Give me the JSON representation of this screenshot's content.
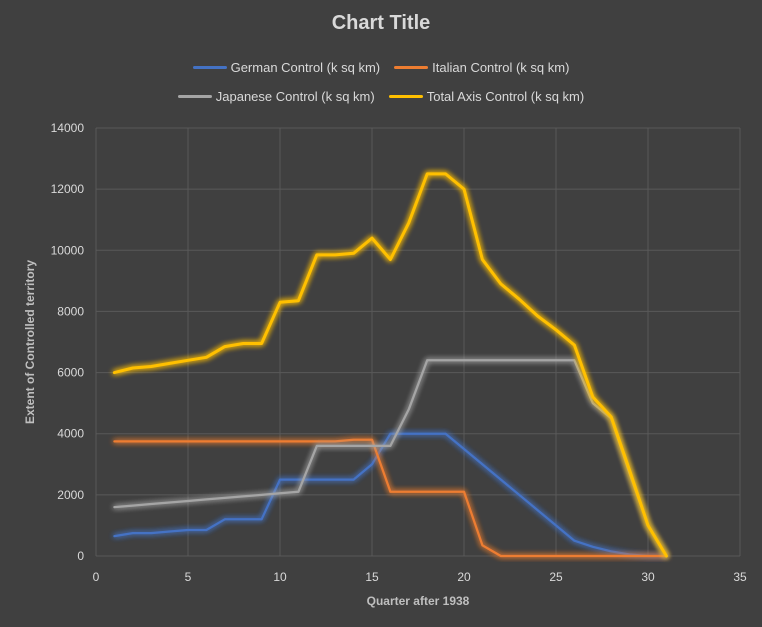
{
  "chart_data": {
    "type": "line",
    "title": "Chart Title",
    "xlabel": "Quarter after 1938",
    "ylabel": "Extent of Controlled territory",
    "xlim": [
      0,
      35
    ],
    "ylim": [
      0,
      14000
    ],
    "xticks": [
      0,
      5,
      10,
      15,
      20,
      25,
      30,
      35
    ],
    "yticks": [
      0,
      2000,
      4000,
      6000,
      8000,
      10000,
      12000,
      14000
    ],
    "grid": true,
    "legend_position": "top",
    "series": [
      {
        "name": "German Control (k sq km)",
        "color": "#4472c4",
        "points": [
          [
            1,
            650
          ],
          [
            2,
            750
          ],
          [
            3,
            750
          ],
          [
            4,
            800
          ],
          [
            5,
            850
          ],
          [
            6,
            850
          ],
          [
            7,
            1200
          ],
          [
            8,
            1200
          ],
          [
            9,
            1200
          ],
          [
            10,
            2500
          ],
          [
            11,
            2500
          ],
          [
            12,
            2500
          ],
          [
            13,
            2500
          ],
          [
            14,
            2500
          ],
          [
            15,
            3000
          ],
          [
            16,
            4000
          ],
          [
            17,
            4000
          ],
          [
            18,
            4000
          ],
          [
            19,
            4000
          ],
          [
            20,
            3500
          ],
          [
            26,
            500
          ],
          [
            27,
            300
          ],
          [
            28,
            150
          ],
          [
            29,
            50
          ],
          [
            30,
            0
          ],
          [
            31,
            0
          ]
        ]
      },
      {
        "name": "Italian Control (k sq km)",
        "color": "#ed7d31",
        "points": [
          [
            1,
            3750
          ],
          [
            2,
            3750
          ],
          [
            3,
            3750
          ],
          [
            4,
            3750
          ],
          [
            5,
            3750
          ],
          [
            6,
            3750
          ],
          [
            7,
            3750
          ],
          [
            8,
            3750
          ],
          [
            9,
            3750
          ],
          [
            10,
            3750
          ],
          [
            11,
            3750
          ],
          [
            12,
            3750
          ],
          [
            13,
            3750
          ],
          [
            14,
            3800
          ],
          [
            15,
            3800
          ],
          [
            16,
            2100
          ],
          [
            17,
            2100
          ],
          [
            18,
            2100
          ],
          [
            19,
            2100
          ],
          [
            20,
            2100
          ],
          [
            21,
            350
          ],
          [
            22,
            0
          ],
          [
            31,
            0
          ]
        ]
      },
      {
        "name": "Japanese Control (k sq km)",
        "color": "#a5a5a5",
        "points": [
          [
            1,
            1600
          ],
          [
            2,
            1650
          ],
          [
            3,
            1700
          ],
          [
            4,
            1750
          ],
          [
            5,
            1800
          ],
          [
            6,
            1850
          ],
          [
            7,
            1900
          ],
          [
            8,
            1950
          ],
          [
            9,
            2000
          ],
          [
            10,
            2050
          ],
          [
            11,
            2100
          ],
          [
            12,
            3600
          ],
          [
            13,
            3600
          ],
          [
            14,
            3600
          ],
          [
            15,
            3600
          ],
          [
            16,
            3600
          ],
          [
            17,
            4800
          ],
          [
            18,
            6400
          ],
          [
            19,
            6400
          ],
          [
            20,
            6400
          ],
          [
            21,
            6400
          ],
          [
            22,
            6400
          ],
          [
            23,
            6400
          ],
          [
            24,
            6400
          ],
          [
            25,
            6400
          ],
          [
            26,
            6400
          ],
          [
            27,
            5000
          ],
          [
            28,
            4500
          ],
          [
            29,
            2700
          ],
          [
            30,
            1000
          ],
          [
            31,
            0
          ]
        ]
      },
      {
        "name": "Total Axis Control (k sq km)",
        "color": "#ffc000",
        "points": [
          [
            1,
            6000
          ],
          [
            2,
            6150
          ],
          [
            3,
            6200
          ],
          [
            4,
            6300
          ],
          [
            5,
            6400
          ],
          [
            6,
            6500
          ],
          [
            7,
            6850
          ],
          [
            8,
            6950
          ],
          [
            9,
            6950
          ],
          [
            10,
            8300
          ],
          [
            11,
            8350
          ],
          [
            12,
            9850
          ],
          [
            13,
            9850
          ],
          [
            14,
            9900
          ],
          [
            15,
            10400
          ],
          [
            16,
            9700
          ],
          [
            17,
            10900
          ],
          [
            18,
            12500
          ],
          [
            19,
            12500
          ],
          [
            20,
            12000
          ],
          [
            21,
            9700
          ],
          [
            22,
            8900
          ],
          [
            23,
            8400
          ],
          [
            24,
            7850
          ],
          [
            25,
            7400
          ],
          [
            26,
            6900
          ],
          [
            27,
            5200
          ],
          [
            28,
            4550
          ],
          [
            29,
            2800
          ],
          [
            30,
            1000
          ],
          [
            31,
            0
          ]
        ]
      }
    ]
  }
}
